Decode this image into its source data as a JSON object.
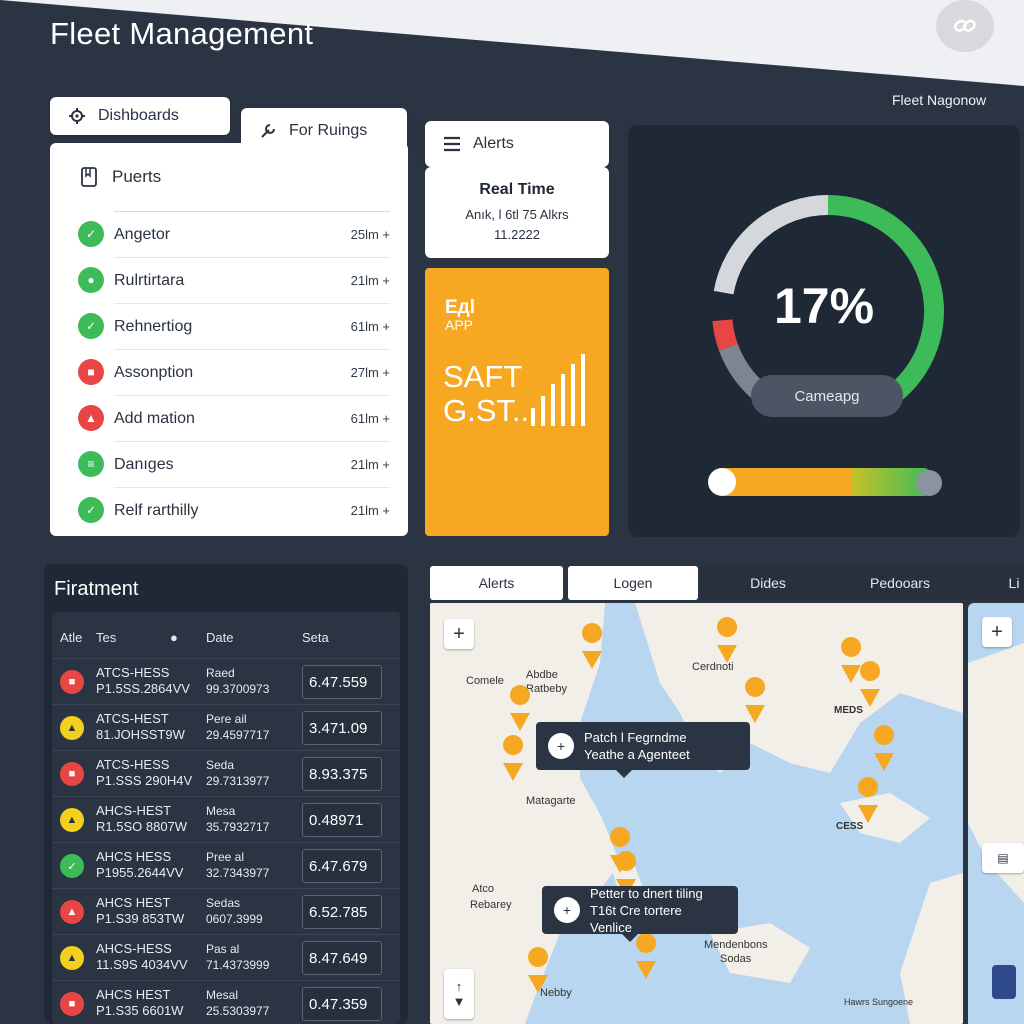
{
  "header": {
    "title": "Fleet Management",
    "subtitle": "Fleet Nagonow"
  },
  "nav": {
    "dashboards": "Dishboards",
    "for_rulings": "For Ruings",
    "alerts": "Alerts"
  },
  "ports": {
    "title": "Puerts",
    "items": [
      {
        "name": "Angetor",
        "time": "25lm +",
        "color": "#3dbb58",
        "icon": "shield-icon"
      },
      {
        "name": "Rulrtirtara",
        "time": "21lm +",
        "color": "#3dbb58",
        "icon": "pin-icon"
      },
      {
        "name": "Rehnertiog",
        "time": "61lm +",
        "color": "#3dbb58",
        "icon": "shield-icon"
      },
      {
        "name": "Assonption",
        "time": "27lm +",
        "color": "#e84545",
        "icon": "truck-icon"
      },
      {
        "name": "Add mation",
        "time": "61lm +",
        "color": "#e84545",
        "icon": "alert-icon"
      },
      {
        "name": "Danıges",
        "time": "21lm +",
        "color": "#3dbb58",
        "icon": "bar-icon"
      },
      {
        "name": "Relf rarthilly",
        "time": "21lm +",
        "color": "#3dbb58",
        "icon": "shield-icon"
      }
    ]
  },
  "realtime": {
    "title": "Real Time",
    "line": "Anık, l 6tl 75 Alkrs",
    "number": "11.2222"
  },
  "promo": {
    "logo_top": "Eдl",
    "logo_bottom": "APP",
    "line1": "SAFT",
    "line2": "G.ST.."
  },
  "gauge": {
    "value": "17%",
    "button": "Cameарg",
    "progress": 0.17,
    "slider_level": 0.9
  },
  "fleet": {
    "title": "Firatment",
    "headers": {
      "col1": "Atle",
      "col2": "Tes",
      "col3": "Date",
      "col4": "Seta"
    },
    "rows": [
      {
        "id1": "ATCS-HESS",
        "id2": "P1.5SS.2864VV",
        "date1": "Raed",
        "date2": "99.3700973",
        "value": "6.47.559",
        "color": "#e84545",
        "icon": "truck-icon"
      },
      {
        "id1": "ATCS-HEST",
        "id2": "81.JOHSST9W",
        "date1": "Pere ail",
        "date2": "29.4597717",
        "value": "3.471.09",
        "color": "#f2d01e",
        "icon": "alert-icon"
      },
      {
        "id1": "ATCS-HESS",
        "id2": "P1.SSS 290H4V",
        "date1": "Seda",
        "date2": "29.7313977",
        "value": "8.93.375",
        "color": "#e84545",
        "icon": "truck-icon"
      },
      {
        "id1": "AHCS-HEST",
        "id2": "R1.5SO 8807W",
        "date1": "Mesa",
        "date2": "35.7932717",
        "value": "0.48971",
        "color": "#f2d01e",
        "icon": "alert-icon"
      },
      {
        "id1": "AHCS HESS",
        "id2": "P1955.2644VV",
        "date1": "Pree al",
        "date2": "32.7343977",
        "value": "6.47.679",
        "color": "#3dbb58",
        "icon": "shield-icon"
      },
      {
        "id1": "AHCS HEST",
        "id2": "P1.S39 853TW",
        "date1": "Sedas",
        "date2": "0607.3999",
        "value": "6.52.785",
        "color": "#e84545",
        "icon": "alert-icon"
      },
      {
        "id1": "AHCS-HESS",
        "id2": "11.S9S 4034VV",
        "date1": "Pas al",
        "date2": "71.4373999",
        "value": "8.47.649",
        "color": "#f2d01e",
        "icon": "alert-icon"
      },
      {
        "id1": "AHCS HEST",
        "id2": "P1.S35 6601W",
        "date1": "Mesal",
        "date2": "25.5303977",
        "value": "0.47.359",
        "color": "#e84545",
        "icon": "truck-icon"
      }
    ]
  },
  "map_tabs": [
    "Alerts",
    "Logen",
    "Dides",
    "Pedooars",
    "Li"
  ],
  "map": {
    "labels": [
      {
        "text": "Comele",
        "bold": false
      },
      {
        "text": "Abdbe",
        "bold": false
      },
      {
        "text": "Ratbeby",
        "bold": false
      },
      {
        "text": "Cerdnoti",
        "bold": false
      },
      {
        "text": "MEDS",
        "bold": true
      },
      {
        "text": "Matagarte",
        "bold": false
      },
      {
        "text": "CESS",
        "bold": true
      },
      {
        "text": "Atco",
        "bold": false
      },
      {
        "text": "Rebarey",
        "bold": false
      },
      {
        "text": "Mendenbons",
        "bold": false
      },
      {
        "text": "Sodas",
        "bold": false
      },
      {
        "text": "Nebby",
        "bold": false
      },
      {
        "text": "Hawrs Sungoene",
        "bold": false
      }
    ],
    "callout1": {
      "line1": "Patch l Fegrndme",
      "line2": "Yeathe a Agenteet"
    },
    "callout2": {
      "line1": "Petter to dnert tiling",
      "line2": "T16t Cre tortere Venlice"
    },
    "zoom_in": "+",
    "side_zoom_in": "+"
  },
  "colors": {
    "accent_orange": "#f6a823",
    "green": "#3dbb58",
    "red": "#e84545",
    "yellow": "#f2d01e",
    "panel": "#1f2835"
  }
}
